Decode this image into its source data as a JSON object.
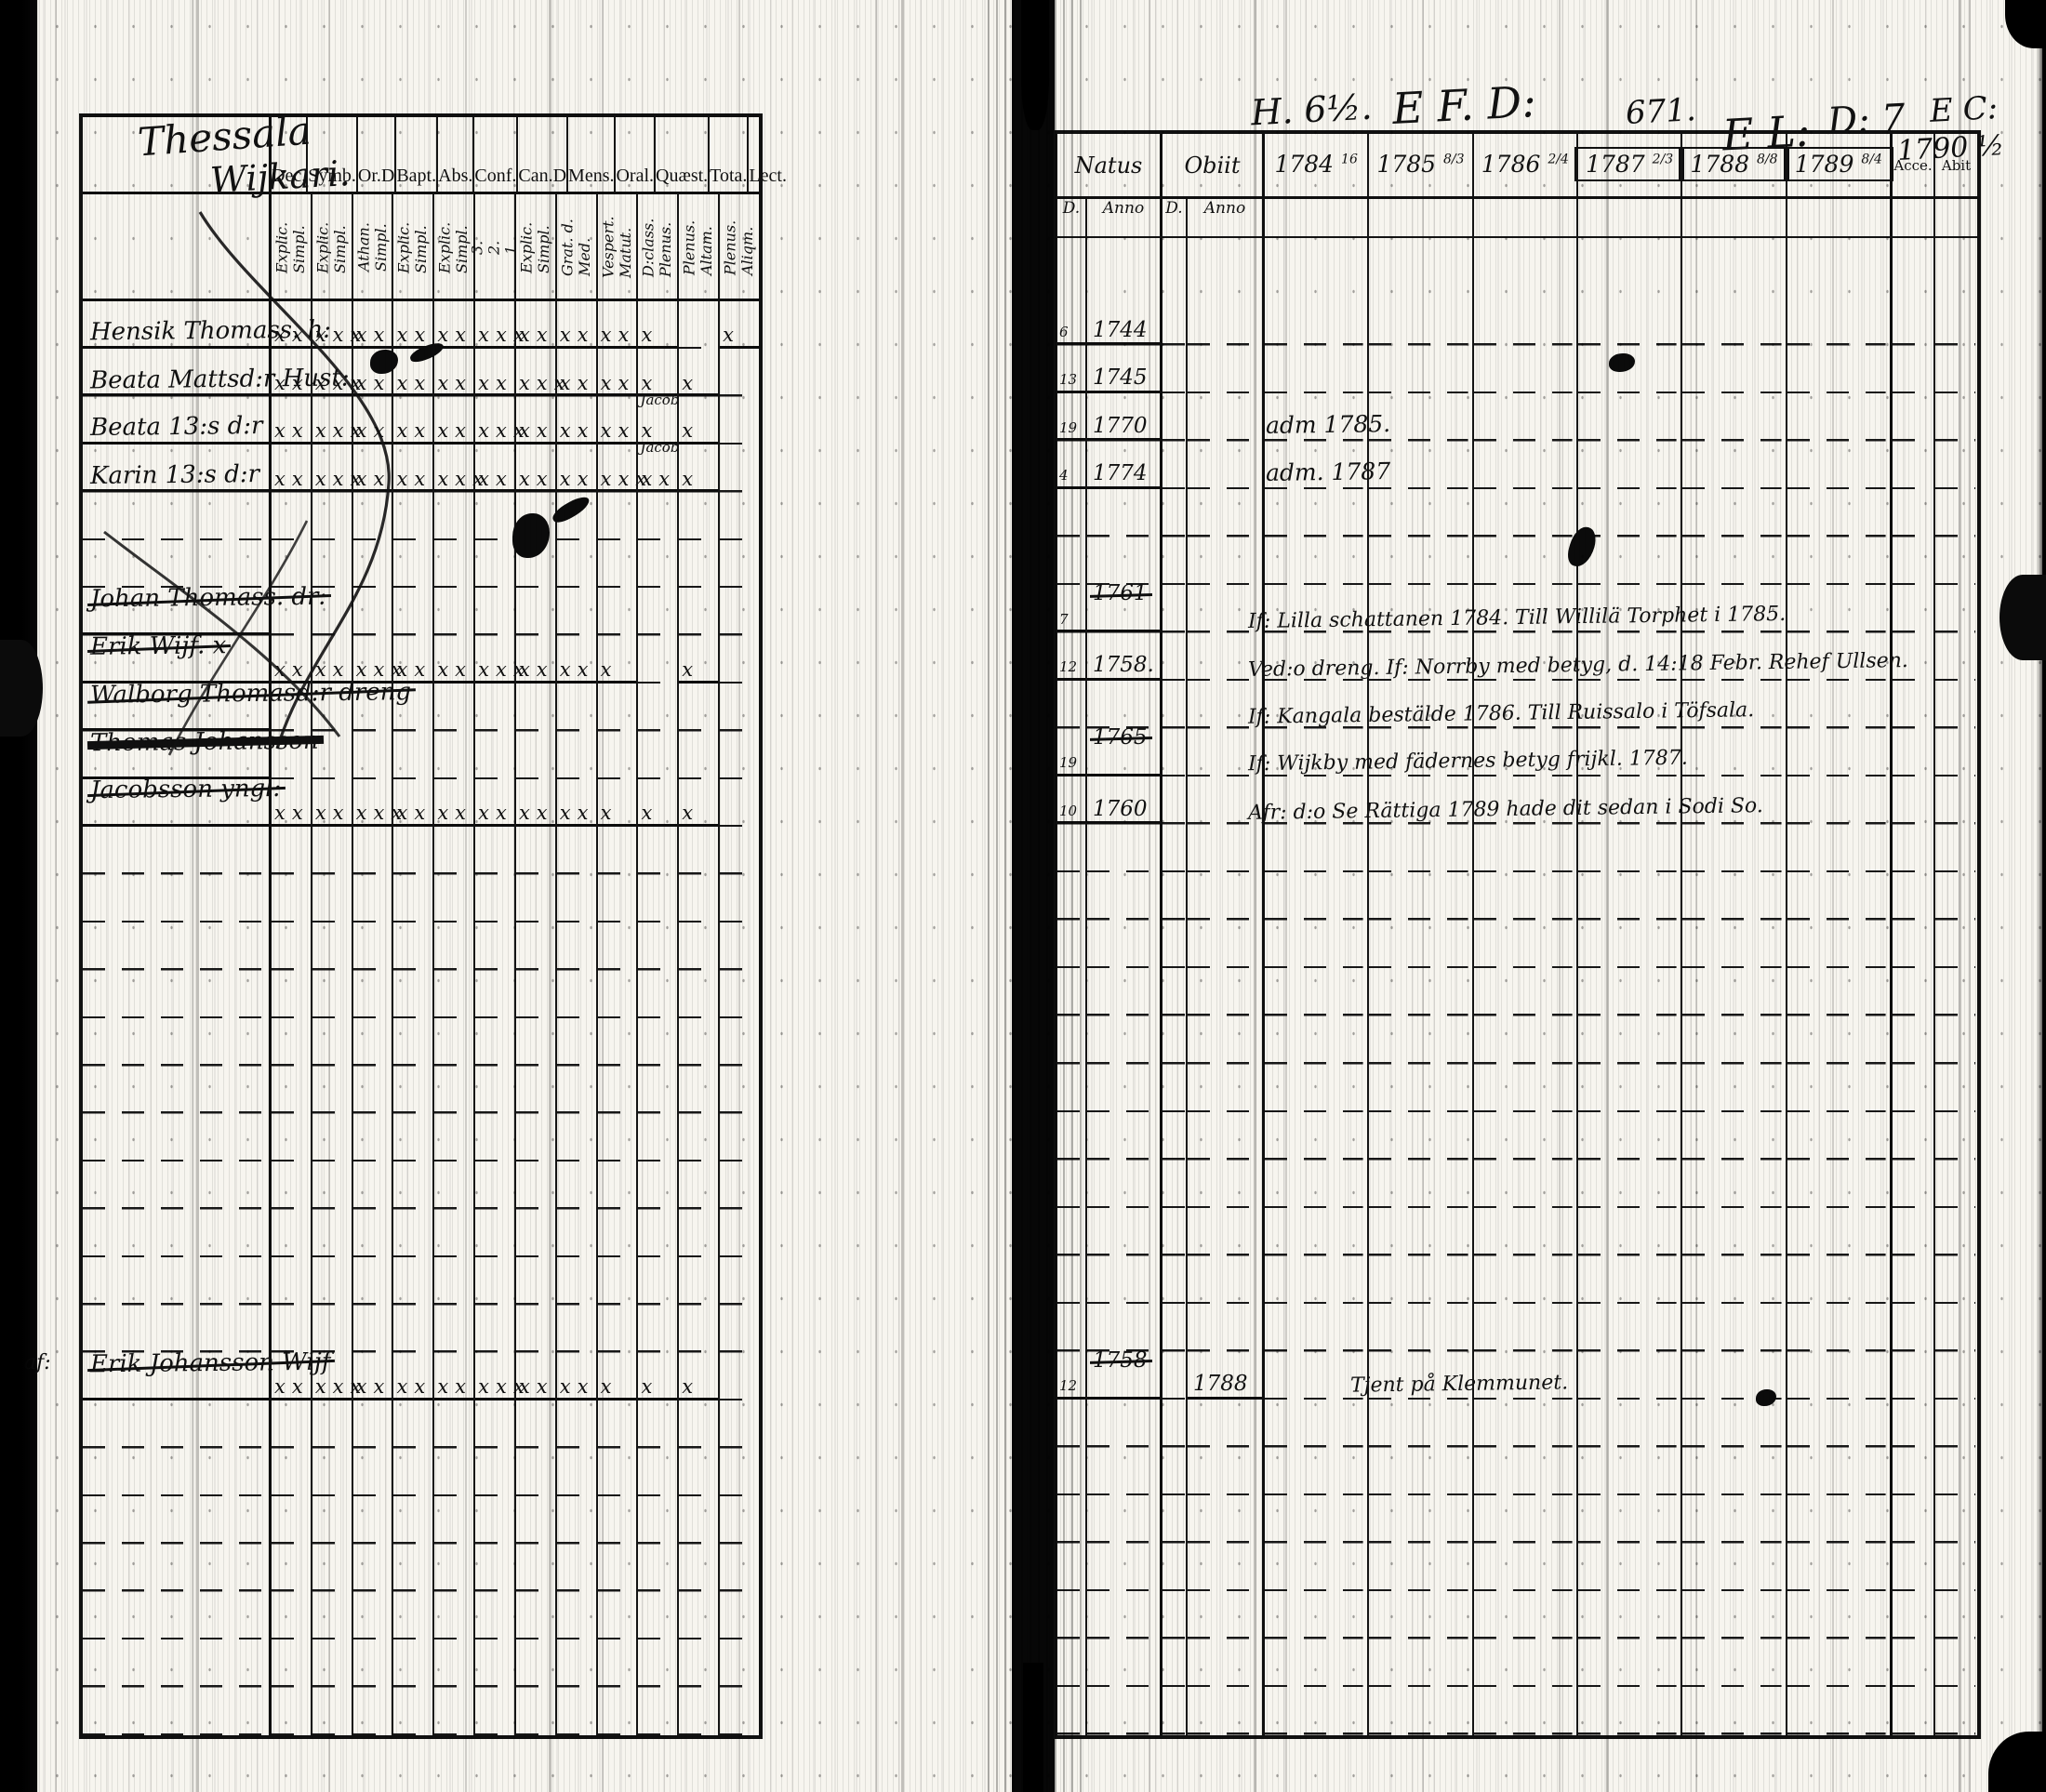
{
  "document_title": "Parish communion register spread (handwritten, 1780s)",
  "left_page": {
    "title_line1": "Thessala",
    "title_line2": "Wijkari.",
    "columns": [
      {
        "label": "Dec.",
        "sub": "Explic.\nSimpl."
      },
      {
        "label": "Symb.",
        "sub": "Explic.\nSimpl."
      },
      {
        "label": "Or.D",
        "sub": "Athan.\nSimpl."
      },
      {
        "label": "Bapt.",
        "sub": "Explic.\nSimpl."
      },
      {
        "label": "Abs.",
        "sub": "Explic.\nSimpl."
      },
      {
        "label": "Conf.",
        "sub": "3.\n2.\n1."
      },
      {
        "label": "Can.D",
        "sub": "Explic.\nSimpl."
      },
      {
        "label": "Mens.",
        "sub": "Grat. d.\nMed."
      },
      {
        "label": "Oral.",
        "sub": "Vespert.\nMatut."
      },
      {
        "label": "Quæst.",
        "sub": "D:class.\nPlenus."
      },
      {
        "label": "Tota.",
        "sub": "Plenus.\nAltam."
      },
      {
        "label": "Lect.",
        "sub": "Plenus.\nAliqm."
      }
    ],
    "rows": [
      {
        "name": "Hensik Thomass. h:",
        "marks": [
          "xx",
          "xxx",
          "xx",
          "xx",
          "xx",
          "xxx",
          "xx",
          "xx",
          "xx",
          "x",
          "",
          "x"
        ]
      },
      {
        "name": "Beata Mattsd:r Hust:",
        "marks": [
          "xx",
          "xxx",
          "xx",
          "xx",
          "xx",
          "xx",
          "xxx",
          "xx",
          "xx",
          "x",
          "x",
          ""
        ]
      },
      {
        "name": "Beata 13:s d:r",
        "marks": [
          "xx",
          "xxx",
          "xx",
          "xx",
          "xx",
          "xxx",
          "xx",
          "xx",
          "xx",
          "x",
          "x",
          ""
        ],
        "colnote": {
          "index": 9,
          "text": "Jacob"
        }
      },
      {
        "name": "Karin 13:s d:r",
        "marks": [
          "xx",
          "xxx",
          "xx",
          "xx",
          "xxx",
          "xx",
          "xx",
          "xx",
          "xxx",
          "xx",
          "x",
          ""
        ],
        "colnote": {
          "index": 9,
          "text": "Jacob"
        }
      },
      {},
      {},
      {
        "name": "Johan Thomass. dr:",
        "struck": true,
        "marks": []
      },
      {
        "name": "Erik Wijf. x",
        "struck": true,
        "marks": [
          "xx",
          "xx",
          "xxx",
          "xx",
          "xx",
          "xxx",
          "xx",
          "xx",
          "x",
          "",
          "x",
          ""
        ]
      },
      {
        "name": "Walborg Thomasd:r dreng",
        "struck": true,
        "marks": []
      },
      {
        "name": "Thomas Johansson",
        "struck": "heavy",
        "marks": []
      },
      {
        "name": "Jacobsson yngl:",
        "struck": true,
        "marks": [
          "xx",
          "xx",
          "xxx",
          "xx",
          "xx",
          "xx",
          "xx",
          "xx",
          "x",
          "x",
          "x",
          ""
        ]
      },
      {},
      {},
      {},
      {},
      {},
      {},
      {},
      {},
      {},
      {},
      {},
      {
        "name": "Erik Johansson Wijf",
        "struck": true,
        "margin": "af:",
        "marks": [
          "xx",
          "xxx",
          "xx",
          "xx",
          "xx",
          "xxx",
          "xx",
          "xx",
          "x",
          "x",
          "x",
          ""
        ]
      },
      {},
      {},
      {},
      {},
      {},
      {},
      {}
    ]
  },
  "right_page": {
    "top_annotations": [
      "H. 6½.",
      "E F. D:",
      "671.",
      "E L:",
      "D: 7",
      "E C:",
      "1790 ½"
    ],
    "header": {
      "natus": "Natus",
      "obiit": "Obiit",
      "accessit": "Acce.",
      "abiit": "Abit",
      "years": [
        {
          "y": "1784",
          "sup": "16"
        },
        {
          "y": "1785",
          "sup": "8/3"
        },
        {
          "y": "1786",
          "sup": "2/4"
        },
        {
          "y": "1787",
          "sup": "2/3"
        },
        {
          "y": "1788",
          "sup": "8/8"
        },
        {
          "y": "1789",
          "sup": "8/4"
        }
      ]
    },
    "subheader": {
      "d1": "D.",
      "anno1": "Anno",
      "d2": "D.",
      "anno2": "Anno"
    },
    "rows": [
      {
        "d": "6",
        "anno": "1744"
      },
      {
        "d": "13",
        "anno": "1745"
      },
      {
        "d": "19",
        "anno": "1770",
        "note": "adm 1785."
      },
      {
        "d": "4",
        "anno": "1774",
        "note": "adm. 1787"
      },
      {},
      {},
      {
        "d": "7",
        "anno": "1761",
        "anno_struck": true,
        "note": "If: Lilla schattanen 1784. Till Willilä Torphet i 1785."
      },
      {
        "d": "12",
        "anno": "1758.",
        "note": "Ved:o dreng. If: Norrby med betyg, d. 14:18 Febr. Rehef Ullsen."
      },
      {
        "note": "If: Kangala bestälde 1786. Till Ruissalo i Töfsala."
      },
      {
        "d": "19",
        "anno": "1765",
        "anno_struck": true,
        "note": "If: Wijkby med fädernes betyg frijkl. 1787."
      },
      {
        "d": "10",
        "anno": "1760",
        "note": "Afr: d:o Se Rättiga 1789 hade dit sedan i Sodi So."
      },
      {},
      {},
      {},
      {},
      {},
      {},
      {},
      {},
      {},
      {},
      {},
      {
        "d": "12",
        "anno": "1758",
        "anno_struck": true,
        "obiit": "1788",
        "note": "Tjent på Klemmunet."
      },
      {},
      {},
      {},
      {},
      {},
      {},
      {}
    ]
  }
}
